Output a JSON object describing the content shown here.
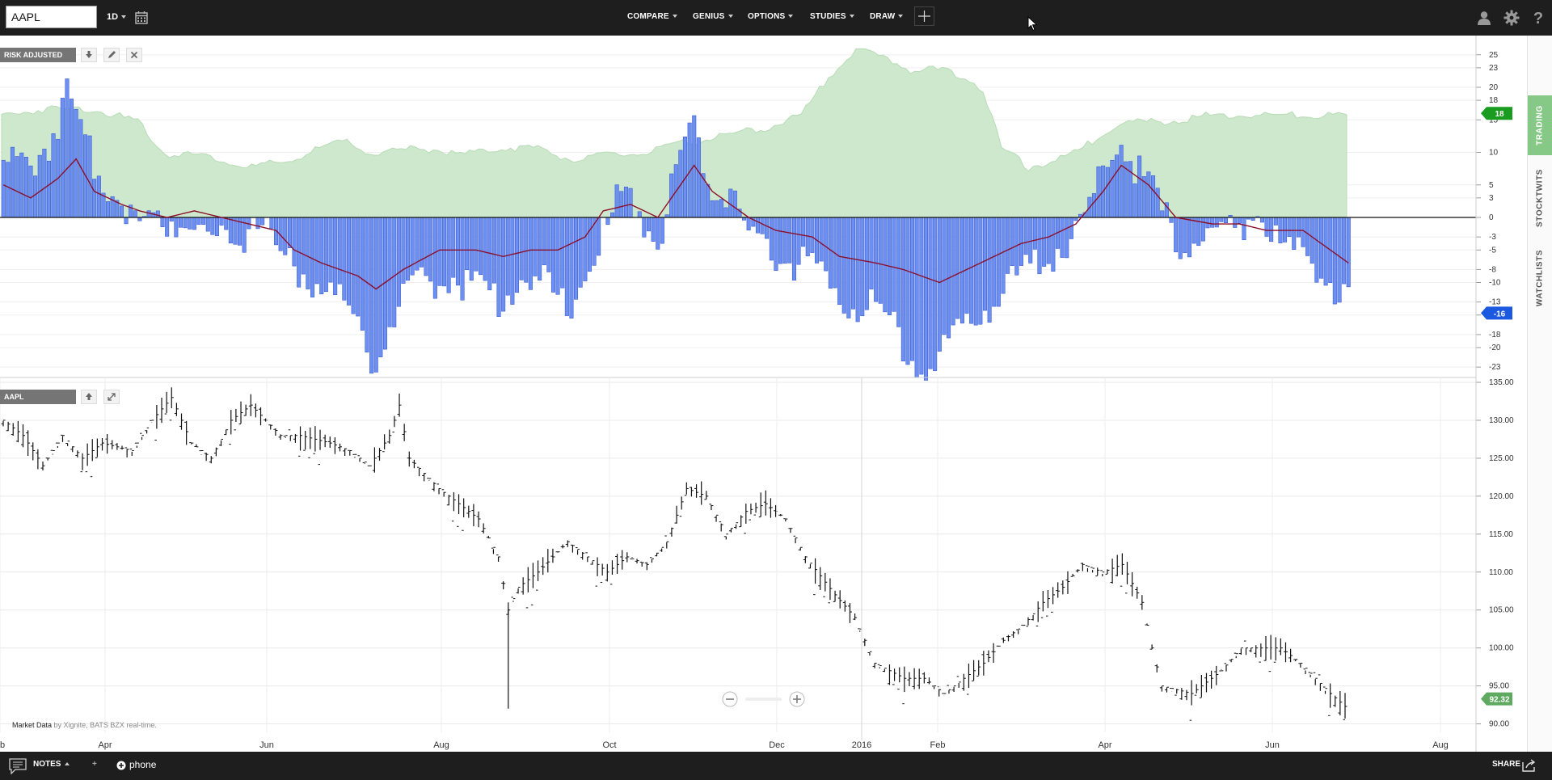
{
  "toolbar": {
    "symbol_value": "AAPL",
    "timeframe": "1D",
    "menus": [
      "COMPARE",
      "GENIUS",
      "OPTIONS",
      "STUDIES",
      "DRAW"
    ]
  },
  "side_tabs": [
    "TRADING",
    "STOCKTWITS",
    "WATCHLISTS"
  ],
  "bottom": {
    "notes_label": "NOTES",
    "plus_label": "+",
    "phone_label": "phone",
    "share_label": "SHARE"
  },
  "credit": {
    "prefix": "Market Data",
    "source": "by Xignite, BATS BZX real-time."
  },
  "colors": {
    "topbar": "#1e1e1e",
    "green_area": "#cde8cc",
    "bar_blue": "#6d8ff0",
    "bar_edge": "#2b4fd0",
    "ma_line": "#8c0f2a",
    "badge_green": "#1a9c20",
    "badge_blue": "#1a59e0",
    "badge_gray": "#5faa60"
  },
  "chart_data": [
    {
      "type": "bar",
      "title": "RISK ADJUSTED",
      "y_ticks": [
        "25",
        "23",
        "20",
        "18",
        "15",
        "10",
        "5",
        "3",
        "0",
        "-3",
        "-5",
        "-8",
        "-10",
        "-13",
        "-15",
        "-18",
        "-20",
        "-23"
      ],
      "ylim": [
        -25,
        26
      ],
      "grid": true,
      "current_upper_label": "18",
      "current_lower_label": "-16",
      "anchors_bars": [
        [
          0,
          10
        ],
        [
          4,
          9
        ],
        [
          10,
          13
        ],
        [
          14,
          20
        ],
        [
          18,
          12
        ],
        [
          22,
          8
        ],
        [
          26,
          4
        ],
        [
          30,
          1
        ],
        [
          36,
          1
        ],
        [
          40,
          2
        ],
        [
          45,
          -1
        ],
        [
          52,
          -2
        ],
        [
          56,
          3
        ],
        [
          60,
          -4
        ],
        [
          66,
          -7
        ],
        [
          72,
          -10
        ],
        [
          78,
          -14
        ],
        [
          82,
          -21
        ],
        [
          86,
          -13
        ],
        [
          92,
          -9
        ],
        [
          98,
          -7
        ],
        [
          104,
          -9
        ],
        [
          108,
          -11
        ],
        [
          114,
          -8
        ],
        [
          120,
          -9
        ],
        [
          124,
          -13
        ],
        [
          128,
          -7
        ],
        [
          132,
          -1
        ],
        [
          136,
          5
        ],
        [
          140,
          3
        ],
        [
          144,
          -3
        ],
        [
          148,
          9
        ],
        [
          152,
          15
        ],
        [
          156,
          5
        ],
        [
          160,
          6
        ],
        [
          164,
          -1
        ],
        [
          168,
          -4
        ],
        [
          174,
          -5
        ],
        [
          178,
          -6
        ],
        [
          182,
          -10
        ],
        [
          190,
          -12
        ],
        [
          196,
          -15
        ],
        [
          202,
          -22
        ],
        [
          208,
          -18
        ],
        [
          214,
          -13
        ],
        [
          220,
          -10
        ],
        [
          226,
          -6
        ],
        [
          232,
          -3
        ],
        [
          238,
          1
        ],
        [
          242,
          9
        ],
        [
          246,
          14
        ],
        [
          250,
          8
        ],
        [
          254,
          4
        ],
        [
          258,
          -2
        ],
        [
          264,
          -2
        ],
        [
          270,
          -1
        ],
        [
          276,
          3
        ],
        [
          280,
          -2
        ],
        [
          288,
          -5
        ],
        [
          292,
          -8
        ],
        [
          296,
          -12
        ]
      ],
      "anchors_ma": [
        [
          0,
          5
        ],
        [
          6,
          3
        ],
        [
          12,
          6
        ],
        [
          16,
          9
        ],
        [
          20,
          4
        ],
        [
          26,
          2
        ],
        [
          30,
          1
        ],
        [
          36,
          0
        ],
        [
          42,
          1
        ],
        [
          48,
          0
        ],
        [
          54,
          -1
        ],
        [
          60,
          -2
        ],
        [
          64,
          -5
        ],
        [
          70,
          -7
        ],
        [
          78,
          -9
        ],
        [
          82,
          -11
        ],
        [
          88,
          -8
        ],
        [
          96,
          -5
        ],
        [
          104,
          -5
        ],
        [
          110,
          -6
        ],
        [
          116,
          -5
        ],
        [
          122,
          -5
        ],
        [
          128,
          -3
        ],
        [
          132,
          1
        ],
        [
          138,
          2
        ],
        [
          144,
          0
        ],
        [
          148,
          4
        ],
        [
          152,
          8
        ],
        [
          156,
          4
        ],
        [
          164,
          0
        ],
        [
          170,
          -2
        ],
        [
          178,
          -3
        ],
        [
          184,
          -6
        ],
        [
          192,
          -7
        ],
        [
          198,
          -8
        ],
        [
          206,
          -10
        ],
        [
          212,
          -8
        ],
        [
          218,
          -6
        ],
        [
          224,
          -4
        ],
        [
          230,
          -3
        ],
        [
          236,
          -1
        ],
        [
          242,
          4
        ],
        [
          246,
          8
        ],
        [
          252,
          5
        ],
        [
          258,
          0
        ],
        [
          266,
          -1
        ],
        [
          272,
          -1
        ],
        [
          278,
          -2
        ],
        [
          286,
          -2
        ],
        [
          290,
          -4
        ],
        [
          296,
          -7
        ]
      ],
      "anchors_green": [
        [
          0,
          16
        ],
        [
          10,
          17
        ],
        [
          20,
          17
        ],
        [
          30,
          15
        ],
        [
          36,
          10
        ],
        [
          44,
          10
        ],
        [
          54,
          8
        ],
        [
          64,
          9
        ],
        [
          70,
          11
        ],
        [
          76,
          12
        ],
        [
          82,
          10
        ],
        [
          92,
          11
        ],
        [
          102,
          10
        ],
        [
          110,
          11
        ],
        [
          118,
          11
        ],
        [
          126,
          9
        ],
        [
          134,
          10
        ],
        [
          140,
          10
        ],
        [
          146,
          11
        ],
        [
          152,
          12
        ],
        [
          160,
          13
        ],
        [
          168,
          14
        ],
        [
          176,
          16
        ],
        [
          182,
          22
        ],
        [
          188,
          26
        ],
        [
          194,
          25
        ],
        [
          200,
          23
        ],
        [
          206,
          23
        ],
        [
          212,
          22
        ],
        [
          216,
          20
        ],
        [
          220,
          11
        ],
        [
          226,
          8
        ],
        [
          232,
          9
        ],
        [
          238,
          11
        ],
        [
          246,
          15
        ],
        [
          256,
          15
        ],
        [
          266,
          16
        ],
        [
          276,
          16
        ],
        [
          286,
          16
        ],
        [
          296,
          16
        ]
      ]
    },
    {
      "type": "ohlc",
      "title": "AAPL",
      "y_ticks": [
        "135.00",
        "130.00",
        "125.00",
        "120.00",
        "115.00",
        "110.00",
        "105.00",
        "100.00",
        "95.00",
        "90.00"
      ],
      "ylim": [
        89,
        136
      ],
      "x_tick_labels": [
        "eb",
        "Apr",
        "Jun",
        "Aug",
        "Oct",
        "Dec",
        "2016",
        "Feb",
        "Apr",
        "Jun",
        "Aug"
      ],
      "last_price_label": "92.32",
      "anchors_close": [
        [
          0,
          130
        ],
        [
          4,
          128
        ],
        [
          8,
          124
        ],
        [
          12,
          128
        ],
        [
          16,
          125
        ],
        [
          20,
          127
        ],
        [
          26,
          126
        ],
        [
          30,
          130
        ],
        [
          34,
          133
        ],
        [
          38,
          127
        ],
        [
          42,
          125
        ],
        [
          46,
          130
        ],
        [
          50,
          132
        ],
        [
          56,
          128
        ],
        [
          60,
          128
        ],
        [
          66,
          127
        ],
        [
          70,
          126
        ],
        [
          74,
          124
        ],
        [
          78,
          128
        ],
        [
          80,
          132
        ],
        [
          82,
          125
        ],
        [
          88,
          121
        ],
        [
          92,
          119
        ],
        [
          96,
          117
        ],
        [
          100,
          112
        ],
        [
          102,
          105
        ],
        [
          104,
          108
        ],
        [
          108,
          110
        ],
        [
          114,
          114
        ],
        [
          118,
          112
        ],
        [
          122,
          110
        ],
        [
          126,
          112
        ],
        [
          130,
          111
        ],
        [
          134,
          114
        ],
        [
          138,
          121
        ],
        [
          142,
          120
        ],
        [
          146,
          115
        ],
        [
          150,
          118
        ],
        [
          154,
          119
        ],
        [
          158,
          117
        ],
        [
          162,
          112
        ],
        [
          168,
          107
        ],
        [
          172,
          104
        ],
        [
          176,
          98
        ],
        [
          182,
          96
        ],
        [
          186,
          96
        ],
        [
          190,
          94
        ],
        [
          194,
          96
        ],
        [
          198,
          98
        ],
        [
          202,
          101
        ],
        [
          206,
          103
        ],
        [
          210,
          106
        ],
        [
          214,
          108
        ],
        [
          218,
          111
        ],
        [
          222,
          110
        ],
        [
          226,
          111
        ],
        [
          230,
          106
        ],
        [
          232,
          100
        ],
        [
          234,
          95
        ],
        [
          240,
          94
        ],
        [
          246,
          97
        ],
        [
          250,
          100
        ],
        [
          254,
          100
        ],
        [
          258,
          100
        ],
        [
          262,
          98
        ],
        [
          268,
          94
        ],
        [
          271,
          92.3
        ]
      ]
    }
  ]
}
